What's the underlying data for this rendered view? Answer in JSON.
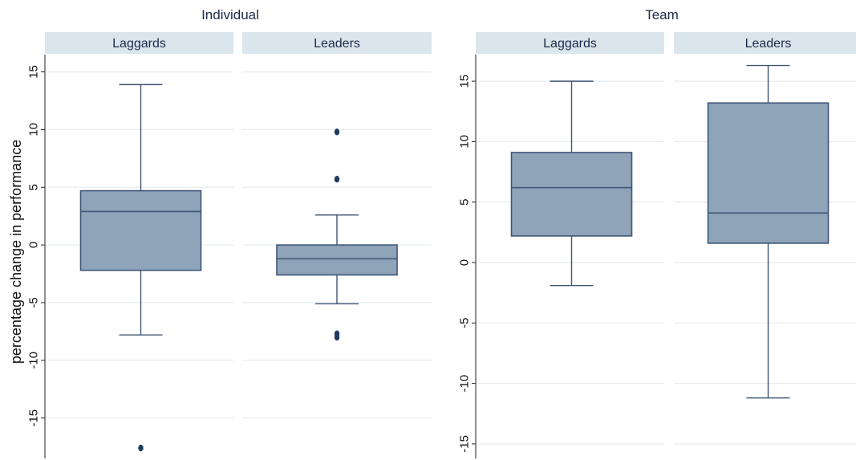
{
  "chart_data": [
    {
      "type": "box",
      "title": "Individual",
      "ylabel": "percentage change in performance",
      "ylim": [
        -18.5,
        16.5
      ],
      "yticks": [
        15,
        10,
        5,
        0,
        -5,
        -10,
        -15
      ],
      "ytick_labels": [
        "15",
        "10",
        "5",
        "0",
        "-5",
        "-10",
        "-15"
      ],
      "panels": [
        {
          "label": "Laggards",
          "whisker_low": -7.8,
          "q1": -2.2,
          "median": 2.9,
          "q3": 4.7,
          "whisker_high": 13.9,
          "outliers": [
            -17.6
          ]
        },
        {
          "label": "Leaders",
          "whisker_low": -5.1,
          "q1": -2.6,
          "median": -1.2,
          "q3": 0.0,
          "whisker_high": 2.6,
          "outliers": [
            9.8,
            5.7,
            -7.7,
            -8.0
          ]
        }
      ]
    },
    {
      "type": "box",
      "title": "Team",
      "ylabel": "",
      "ylim": [
        -16.2,
        17.2
      ],
      "yticks": [
        15,
        10,
        5,
        0,
        -5,
        -10,
        -15
      ],
      "ytick_labels": [
        "15",
        "10",
        "5",
        "0",
        "-5",
        "-10",
        "-15"
      ],
      "panels": [
        {
          "label": "Laggards",
          "whisker_low": -1.9,
          "q1": 2.2,
          "median": 6.2,
          "q3": 9.1,
          "whisker_high": 15.0,
          "outliers": []
        },
        {
          "label": "Leaders",
          "whisker_low": -11.2,
          "q1": 1.6,
          "median": 4.1,
          "q3": 13.2,
          "whisker_high": 16.3,
          "outliers": []
        }
      ]
    }
  ]
}
